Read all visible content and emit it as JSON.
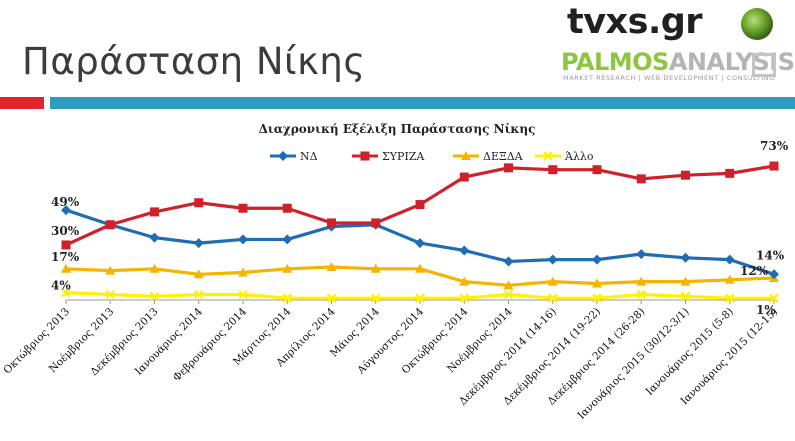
{
  "slide": {
    "title": "Παράσταση Νίκης"
  },
  "logos": {
    "tvxs": "tvxs.gr",
    "palmos_a": "PALMOS",
    "palmos_b": "ANALYSIS",
    "tagline": "MARKET RESEARCH | WEB DEVELOPMENT | CONSULTING"
  },
  "colors": {
    "nd": "#1f6db3",
    "syriza": "#d0202a",
    "dexda": "#f5b400",
    "allo": "#fff200",
    "red_bar": "#e0262b",
    "blue_bar": "#2f9bc1"
  },
  "chart_data": {
    "type": "line",
    "title": "Διαχρονική Εξέλιξη Παράστασης Νίκης",
    "xlabel": "",
    "ylabel": "",
    "ylim": [
      0,
      85
    ],
    "grid": false,
    "legend": "top",
    "categories": [
      "Οκτώβριος 2013",
      "Νοέμβριος 2013",
      "Δεκέμβριος 2013",
      "Ιανουάριος 2014",
      "Φεβρουάριος 2014",
      "Μάρτιος 2014",
      "Απρίλιος 2014",
      "Μάιος 2014",
      "Αύγουστος 2014",
      "Οκτώβριος 2014",
      "Νοέμβριος 2014",
      "Δεκέμβριος 2014 (14-16)",
      "Δεκέμβριος 2014 (19-22)",
      "Δεκέμβριος 2014 (26-28)",
      "Ιανουάριος 2015 (30/12-3/1)",
      "Ιανουάριος 2015 (5-8)",
      "Ιανουάριος 2015 (12-15)"
    ],
    "series": [
      {
        "name": "ΝΔ",
        "color": "#1f6db3",
        "marker": "diamond",
        "values": [
          49,
          41,
          34,
          31,
          33,
          33,
          40,
          41,
          31,
          27,
          21,
          22,
          22,
          25,
          23,
          22,
          14
        ]
      },
      {
        "name": "ΣΥΡΙΖΑ",
        "color": "#d0202a",
        "marker": "square",
        "values": [
          30,
          41,
          48,
          53,
          50,
          50,
          42,
          42,
          52,
          67,
          72,
          71,
          71,
          66,
          68,
          69,
          73
        ]
      },
      {
        "name": "ΔΕΞΔΑ",
        "color": "#f5b400",
        "marker": "triangle",
        "values": [
          17,
          16,
          17,
          14,
          15,
          17,
          18,
          17,
          17,
          10,
          8,
          10,
          9,
          10,
          10,
          11,
          12
        ]
      },
      {
        "name": "Άλλο",
        "color": "#fff200",
        "marker": "x",
        "values": [
          4,
          3,
          2,
          3,
          3,
          1,
          1,
          1,
          1,
          1,
          3,
          1,
          1,
          3,
          2,
          1,
          1
        ]
      }
    ],
    "annotations": [
      {
        "series": 0,
        "point": 0,
        "text": "49%"
      },
      {
        "series": 1,
        "point": 0,
        "text": "30%"
      },
      {
        "series": 2,
        "point": 0,
        "text": "17%"
      },
      {
        "series": 3,
        "point": 0,
        "text": "4%"
      },
      {
        "series": 1,
        "point": 16,
        "text": "73%"
      },
      {
        "series": 0,
        "point": 16,
        "text": "14%"
      },
      {
        "series": 2,
        "point": 16,
        "text": "12%"
      },
      {
        "series": 3,
        "point": 16,
        "text": "1%"
      }
    ]
  }
}
